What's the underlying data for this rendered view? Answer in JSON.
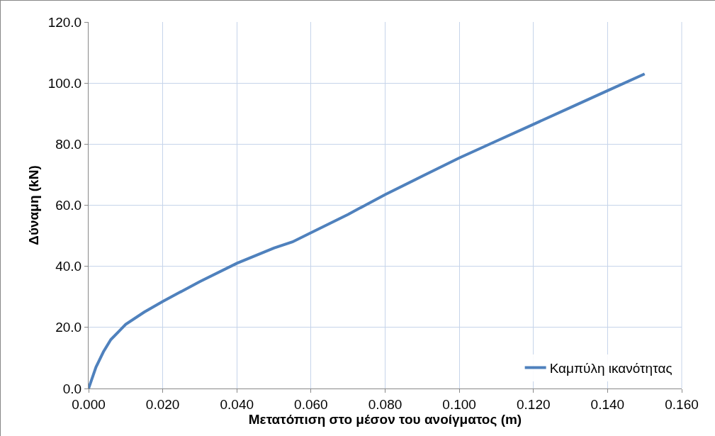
{
  "chart_data": {
    "type": "line",
    "xlabel": "Μετατόπιση στο μέσον του ανοίγματος (m)",
    "ylabel": "Δύναμη (kN)",
    "x": [
      0,
      0.002,
      0.004,
      0.006,
      0.008,
      0.01,
      0.015,
      0.02,
      0.03,
      0.04,
      0.05,
      0.055,
      0.06,
      0.07,
      0.08,
      0.09,
      0.1,
      0.11,
      0.12,
      0.13,
      0.14,
      0.15
    ],
    "series": [
      {
        "name": "Καμπύλη ικανότητας",
        "color": "#4f81bd",
        "values": [
          0,
          7,
          12,
          16,
          18.5,
          21,
          25,
          28.5,
          35,
          41,
          46,
          48,
          51,
          57,
          63.5,
          69.5,
          75.5,
          81,
          86.5,
          92,
          97.5,
          103
        ]
      }
    ],
    "xlim": [
      0,
      0.16
    ],
    "xticks": [
      {
        "value": 0,
        "label": "0.000"
      },
      {
        "value": 0.02,
        "label": "0.020"
      },
      {
        "value": 0.04,
        "label": "0.040"
      },
      {
        "value": 0.06,
        "label": "0.060"
      },
      {
        "value": 0.08,
        "label": "0.080"
      },
      {
        "value": 0.1,
        "label": "0.100"
      },
      {
        "value": 0.12,
        "label": "0.120"
      },
      {
        "value": 0.14,
        "label": "0.140"
      },
      {
        "value": 0.16,
        "label": "0.160"
      }
    ],
    "ylim": [
      0,
      120
    ],
    "yticks": [
      {
        "value": 0,
        "label": "0.0"
      },
      {
        "value": 20,
        "label": "20.0"
      },
      {
        "value": 40,
        "label": "40.0"
      },
      {
        "value": 60,
        "label": "60.0"
      },
      {
        "value": 80,
        "label": "80.0"
      },
      {
        "value": 100,
        "label": "100.0"
      },
      {
        "value": 120,
        "label": "120.0"
      }
    ],
    "grid": true,
    "legend": "bottom right",
    "marker": "none",
    "line_style": "solid"
  }
}
